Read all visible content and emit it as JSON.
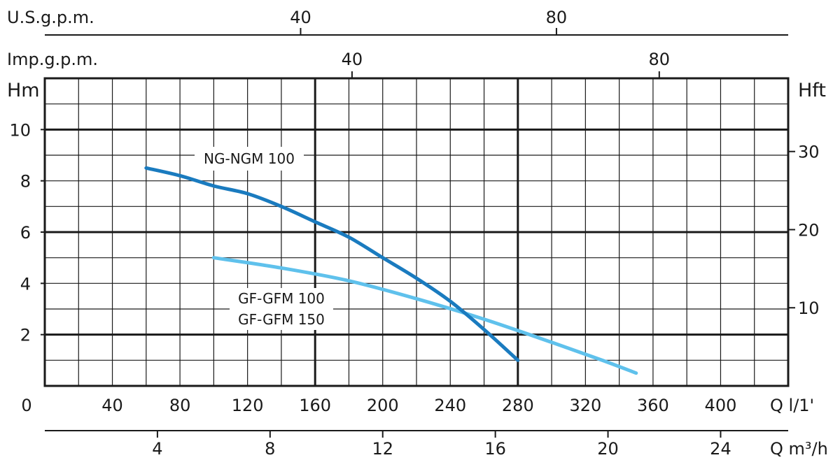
{
  "chart_data": {
    "type": "line",
    "x_unit": "Q l/1'",
    "x_ticks": [
      0,
      40,
      80,
      120,
      160,
      200,
      240,
      280,
      320,
      360,
      400
    ],
    "xlim": [
      0,
      440
    ],
    "y_unit": "Hm",
    "y_ticks": [
      2,
      4,
      6,
      8,
      10
    ],
    "ylim": [
      0,
      12
    ],
    "secondary_y": {
      "unit": "Hft",
      "ticks": [
        10,
        20,
        30
      ]
    },
    "secondary_x_m3h": {
      "unit": "Q m³/h",
      "ticks": [
        4,
        8,
        12,
        16,
        20,
        24
      ]
    },
    "top_axis_usgpm": {
      "unit": "U.S.g.p.m.",
      "ticks": [
        40,
        80
      ]
    },
    "top_axis_impgpm": {
      "unit": "Imp.g.p.m.",
      "ticks": [
        40,
        80
      ]
    },
    "grid": true,
    "series": [
      {
        "name": "NG-NGM 100",
        "color": "#1a7bbf",
        "x": [
          60,
          80,
          100,
          120,
          140,
          160,
          180,
          200,
          220,
          240,
          260,
          280
        ],
        "y": [
          8.5,
          8.2,
          7.8,
          7.5,
          7.0,
          6.4,
          5.8,
          5.0,
          4.2,
          3.3,
          2.2,
          1.0
        ]
      },
      {
        "name_lines": [
          "GF-GFM 100",
          "GF-GFM 150"
        ],
        "color": "#5fc1ec",
        "x": [
          100,
          140,
          180,
          220,
          260,
          300,
          330,
          350
        ],
        "y": [
          5.0,
          4.6,
          4.1,
          3.4,
          2.6,
          1.7,
          1.0,
          0.5
        ]
      }
    ]
  }
}
